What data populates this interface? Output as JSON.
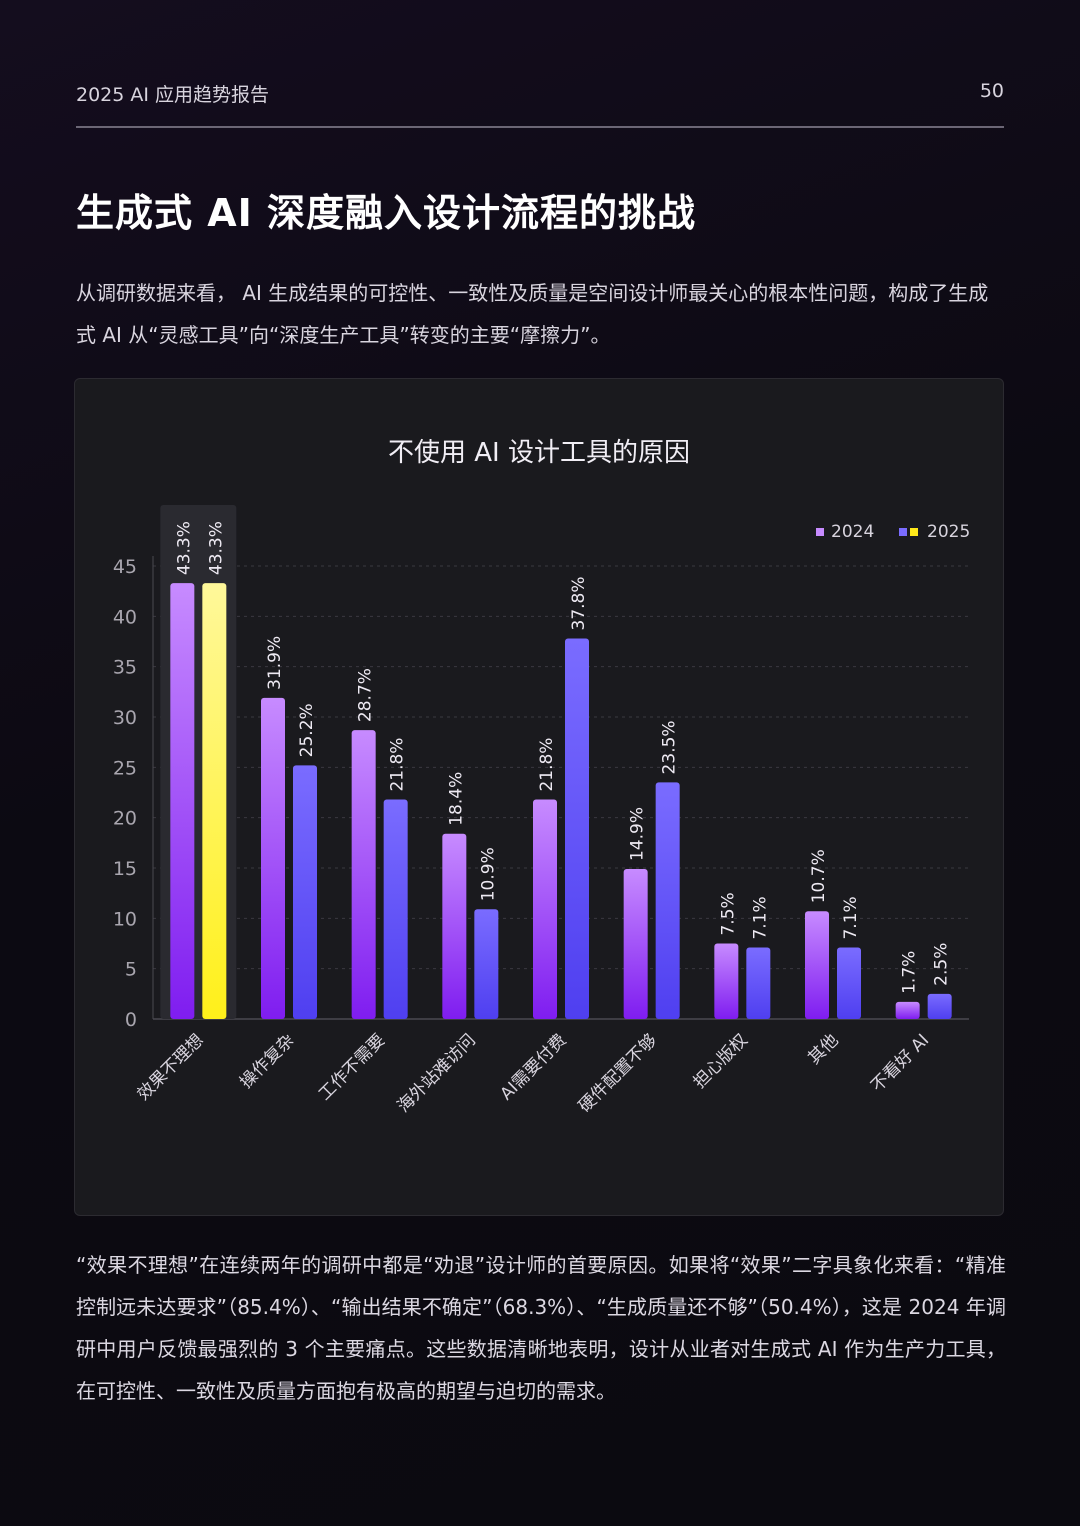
{
  "header": {
    "doc_title": "2025 AI 应用趋势报告",
    "page_number": "50"
  },
  "page_title": "生成式 AI 深度融入设计流程的挑战",
  "intro": "从调研数据来看， AI 生成结果的可控性、一致性及质量是空间设计师最关心的根本性问题，构成了生成式 AI 从“灵感工具”向“深度生产工具”转变的主要“摩擦力”。",
  "chart_data": {
    "type": "bar",
    "title": "不使用 AI 设计工具的原因",
    "xlabel": "",
    "ylabel": "",
    "categories": [
      "效果不理想",
      "操作复杂",
      "工作不需要",
      "海外站难访问",
      "AI需要付费",
      "硬件配置不够",
      "担心版权",
      "其他",
      "不看好 AI"
    ],
    "series": [
      {
        "name": "2024",
        "values": [
          43.3,
          31.9,
          28.7,
          18.4,
          21.8,
          14.9,
          7.5,
          10.7,
          1.7
        ],
        "labels": [
          "43.3%",
          "31.9%",
          "28.7%",
          "18.4%",
          "21.8%",
          "14.9%",
          "7.5%",
          "10.7%",
          "1.7%"
        ]
      },
      {
        "name": "2025",
        "values": [
          43.3,
          25.2,
          21.8,
          10.9,
          37.8,
          23.5,
          7.1,
          7.1,
          2.5
        ],
        "labels": [
          "43.3%",
          "25.2%",
          "21.8%",
          "10.9%",
          "37.8%",
          "23.5%",
          "7.1%",
          "7.1%",
          "2.5%"
        ]
      }
    ],
    "ylim": [
      0,
      45
    ],
    "yticks": [
      "0",
      "5",
      "10",
      "15",
      "20",
      "25",
      "30",
      "35",
      "40",
      "45"
    ],
    "grid": true,
    "legend": "top-right",
    "highlight_category": "效果不理想",
    "colors": {
      "series_2024": [
        "#7f1df0",
        "#c78bff"
      ],
      "series_2025": [
        "#4f3ff0",
        "#7a6cff"
      ],
      "highlight": [
        "#fff01a",
        "#fff89a"
      ],
      "legend_2025_secondary": "#ffe81a"
    }
  },
  "conclusion": "“效果不理想”在连续两年的调研中都是“劝退”设计师的首要原因。如果将“效果”二字具象化来看：“精准控制远未达要求”（85.4%）、“输出结果不确定”（68.3%）、“生成质量还不够”（50.4%），这是 2024 年调研中用户反馈最强烈的 3 个主要痛点。这些数据清晰地表明，设计从业者对生成式 AI 作为生产力工具，在可控性、一致性及质量方面抱有极高的期望与迫切的需求。"
}
